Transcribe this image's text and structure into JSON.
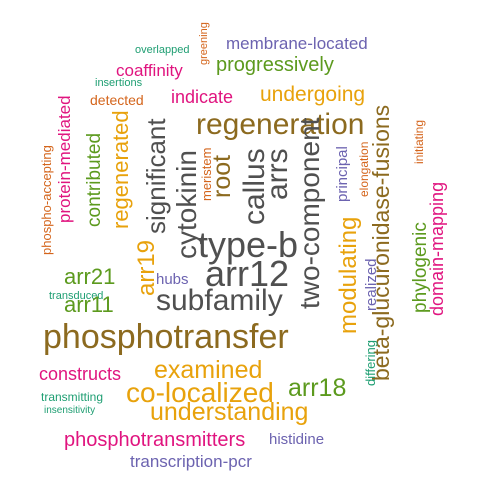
{
  "colors": {
    "brown": "#8c6a1f",
    "gray": "#505050",
    "green": "#5c9a1e",
    "magenta": "#e0147f",
    "orange": "#e8a20c",
    "dark-orange": "#d4651c",
    "purple": "#6c63b0",
    "teal": "#1e9e72"
  },
  "words": [
    {
      "text": "overlapped",
      "color": "teal",
      "vertical": false
    },
    {
      "text": "greening",
      "color": "dark-orange",
      "vertical": true
    },
    {
      "text": "membrane-located",
      "color": "purple",
      "vertical": false
    },
    {
      "text": "insertions",
      "color": "teal",
      "vertical": false
    },
    {
      "text": "coaffinity",
      "color": "magenta",
      "vertical": false
    },
    {
      "text": "progressively",
      "color": "green",
      "vertical": false
    },
    {
      "text": "detected",
      "color": "dark-orange",
      "vertical": false
    },
    {
      "text": "indicate",
      "color": "magenta",
      "vertical": false
    },
    {
      "text": "undergoing",
      "color": "orange",
      "vertical": false
    },
    {
      "text": "regeneration",
      "color": "brown",
      "vertical": false
    },
    {
      "text": "phospho-accepting",
      "color": "dark-orange",
      "vertical": true
    },
    {
      "text": "protein-mediated",
      "color": "magenta",
      "vertical": true
    },
    {
      "text": "contributed",
      "color": "green",
      "vertical": true
    },
    {
      "text": "regenerated",
      "color": "orange",
      "vertical": true
    },
    {
      "text": "significant",
      "color": "gray",
      "vertical": true
    },
    {
      "text": "arr19",
      "color": "orange",
      "vertical": true
    },
    {
      "text": "cytokinin",
      "color": "gray",
      "vertical": true
    },
    {
      "text": "meristem",
      "color": "dark-orange",
      "vertical": true
    },
    {
      "text": "root",
      "color": "brown",
      "vertical": true
    },
    {
      "text": "callus",
      "color": "gray",
      "vertical": true
    },
    {
      "text": "arrs",
      "color": "gray",
      "vertical": true
    },
    {
      "text": "two-component",
      "color": "gray",
      "vertical": true
    },
    {
      "text": "principal",
      "color": "purple",
      "vertical": true
    },
    {
      "text": "elongation",
      "color": "dark-orange",
      "vertical": true
    },
    {
      "text": "beta-glucuronidase-fusions",
      "color": "brown",
      "vertical": true
    },
    {
      "text": "initiating",
      "color": "dark-orange",
      "vertical": true
    },
    {
      "text": "domain-mapping",
      "color": "magenta",
      "vertical": true
    },
    {
      "text": "phylogenic",
      "color": "green",
      "vertical": true
    },
    {
      "text": "type-b",
      "color": "gray",
      "vertical": false
    },
    {
      "text": "arr12",
      "color": "gray",
      "vertical": false
    },
    {
      "text": "arr21",
      "color": "green",
      "vertical": false
    },
    {
      "text": "hubs",
      "color": "purple",
      "vertical": false
    },
    {
      "text": "transduced",
      "color": "teal",
      "vertical": false
    },
    {
      "text": "arr11",
      "color": "green",
      "vertical": false
    },
    {
      "text": "subfamily",
      "color": "gray",
      "vertical": false
    },
    {
      "text": "modulating",
      "color": "orange",
      "vertical": true
    },
    {
      "text": "realized",
      "color": "purple",
      "vertical": true
    },
    {
      "text": "phosphotransfer",
      "color": "brown",
      "vertical": false
    },
    {
      "text": "differing",
      "color": "teal",
      "vertical": true
    },
    {
      "text": "examined",
      "color": "orange",
      "vertical": false
    },
    {
      "text": "constructs",
      "color": "magenta",
      "vertical": false
    },
    {
      "text": "co-localized",
      "color": "orange",
      "vertical": false
    },
    {
      "text": "arr18",
      "color": "green",
      "vertical": false
    },
    {
      "text": "transmitting",
      "color": "teal",
      "vertical": false
    },
    {
      "text": "insensitivity",
      "color": "teal",
      "vertical": false
    },
    {
      "text": "understanding",
      "color": "orange",
      "vertical": false
    },
    {
      "text": "phosphotransmitters",
      "color": "magenta",
      "vertical": false
    },
    {
      "text": "histidine",
      "color": "purple",
      "vertical": false
    },
    {
      "text": "transcription-pcr",
      "color": "purple",
      "vertical": false
    }
  ]
}
